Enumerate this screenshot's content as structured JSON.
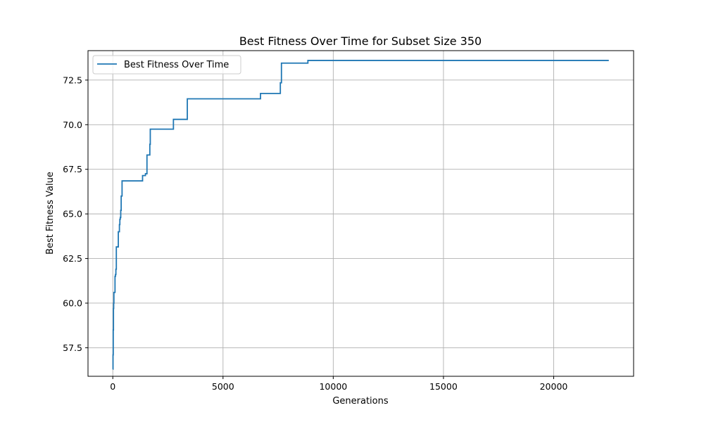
{
  "chart_data": {
    "type": "line",
    "title": "Best Fitness Over Time for Subset Size 350",
    "xlabel": "Generations",
    "ylabel": "Best Fitness Value",
    "xlim": [
      -1125,
      23625
    ],
    "ylim": [
      55.9,
      74.15
    ],
    "x_ticks": [
      0,
      5000,
      10000,
      15000,
      20000
    ],
    "x_tick_labels": [
      "0",
      "5000",
      "10000",
      "15000",
      "20000"
    ],
    "y_ticks": [
      57.5,
      60.0,
      62.5,
      65.0,
      67.5,
      70.0,
      72.5
    ],
    "y_tick_labels": [
      "57.5",
      "60.0",
      "62.5",
      "65.0",
      "67.5",
      "70.0",
      "72.5"
    ],
    "grid": true,
    "legend_position": "top-left",
    "colors": {
      "series": "#1f77b4",
      "grid": "#b0b0b0",
      "axes": "#000000"
    },
    "series": [
      {
        "name": "Best Fitness Over Time",
        "step": true,
        "x": [
          0,
          10,
          20,
          30,
          40,
          50,
          60,
          70,
          80,
          100,
          120,
          140,
          160,
          200,
          250,
          300,
          320,
          340,
          360,
          380,
          400,
          420,
          1350,
          1480,
          1550,
          1680,
          1700,
          2700,
          2750,
          3350,
          3380,
          6650,
          6700,
          7580,
          7600,
          7650,
          8820,
          8850,
          22500
        ],
        "y": [
          56.3,
          57.1,
          58.5,
          59.7,
          60.0,
          60.6,
          60.6,
          60.6,
          60.6,
          61.5,
          61.6,
          61.9,
          63.15,
          63.15,
          64.0,
          64.4,
          64.7,
          64.8,
          65.2,
          66.0,
          66.0,
          66.85,
          67.15,
          67.25,
          68.3,
          68.9,
          69.75,
          69.75,
          70.3,
          70.3,
          71.45,
          71.45,
          71.75,
          71.75,
          72.35,
          73.45,
          73.45,
          73.6,
          73.6
        ]
      }
    ]
  }
}
